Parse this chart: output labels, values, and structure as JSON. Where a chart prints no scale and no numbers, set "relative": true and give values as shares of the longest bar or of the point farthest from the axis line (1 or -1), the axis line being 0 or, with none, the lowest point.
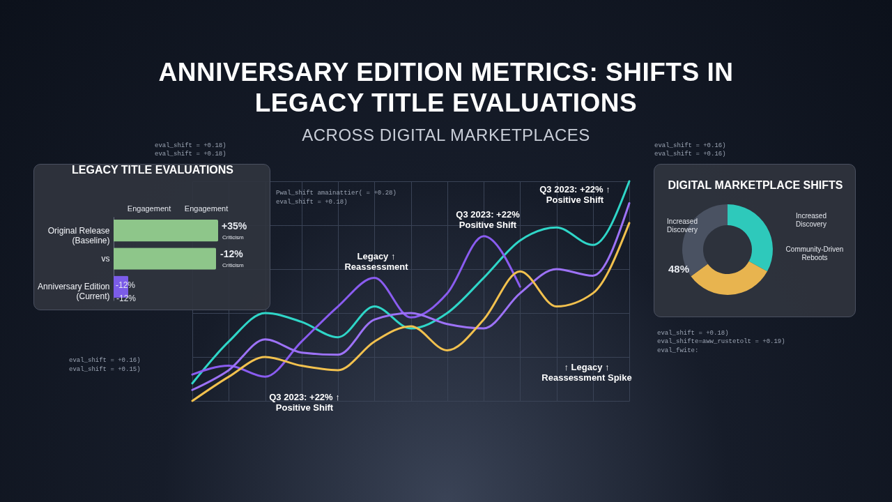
{
  "chart_data": [
    {
      "type": "bar",
      "title": "LEGACY TITLE EVALUATIONS",
      "orientation": "horizontal",
      "relative": true,
      "categories": [
        "Original Release (Baseline)",
        "vs",
        "Anniversary Edition (Current)"
      ],
      "values": [
        1,
        0.98,
        0.14
      ],
      "colors": [
        "#8ec68a",
        "#8ec68a",
        "#7b5ce8"
      ],
      "annotations": [
        "Engagement",
        "Engagement",
        "+35%",
        "Criticism",
        "-12%",
        "Criticism",
        "-12%",
        "-12%"
      ]
    },
    {
      "type": "line",
      "title": "ANNIVERSARY EDITION METRICS: SHIFTS IN LEGACY TITLE EVALUATIONS",
      "subtitle": "ACROSS DIGITAL MARKETPLACES",
      "relative": true,
      "grid": true,
      "categories": [
        null,
        null,
        null,
        null,
        null,
        null,
        null,
        null,
        null,
        null,
        null,
        null,
        null
      ],
      "series": [
        {
          "color": "#2fd6c8",
          "values": [
            0.08,
            0.27,
            0.4,
            0.36,
            0.29,
            0.43,
            0.33,
            0.4,
            0.56,
            0.73,
            0.79,
            0.71,
            1
          ]
        },
        {
          "color": "#8a5cf0",
          "values": [
            0.12,
            0.16,
            0.11,
            0.27,
            0.43,
            0.56,
            0.38,
            0.49,
            0.75,
            0.52,
            null,
            null,
            null
          ]
        },
        {
          "color": "#9d72f7",
          "values": [
            0.05,
            0.14,
            0.28,
            0.22,
            0.21,
            0.37,
            0.4,
            0.35,
            0.33,
            0.49,
            0.6,
            0.57,
            0.9
          ]
        },
        {
          "color": "#f2c14e",
          "values": [
            0,
            0.11,
            0.2,
            0.16,
            0.14,
            0.27,
            0.34,
            0.23,
            0.37,
            0.59,
            0.43,
            0.49,
            0.81
          ]
        }
      ],
      "annotations": [
        "Legacy ↑ Reassessment",
        "Q3 2023: +22% ↑ Positive Shift",
        "Q3 2023: +22% Positive Shift",
        "Q3 2023: +22% ↑ Positive Shift",
        "↑ Legacy ↑ Reassessment Spike",
        "eval_shift = +0.18)",
        "eval_shift = +0.18)",
        "Pwal_shift amainattier( = +0.28)",
        "eval_shift = +0.18)",
        "eval_shift = +0.16)",
        "eval_shift = +0.16)",
        "eval_shift = +0.18)",
        "eval_shifte=aww_rustetolt = +0.19)",
        "eval_fwite:",
        "eval_shift = +0.16)",
        "eval_shift = +0.15)"
      ]
    },
    {
      "type": "donut",
      "title": "DIGITAL MARKETPLACE SHIFTS",
      "categories": [
        "Increased Discovery",
        null,
        "Increased Discovery"
      ],
      "values": [
        33,
        32,
        35
      ],
      "colors": [
        "#2ec9bb",
        "#e8b44f",
        "#4a5262"
      ],
      "annotations": [
        "Community-Driven Reboots",
        "48%"
      ]
    }
  ]
}
